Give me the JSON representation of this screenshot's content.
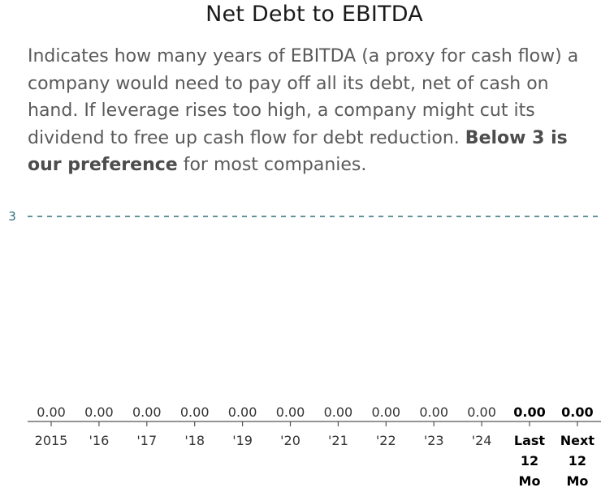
{
  "title": "Net Debt to EBITDA",
  "description": {
    "text": "Indicates how many years of EBITDA (a proxy for cash flow) a company would need to pay off all its debt, net of cash on hand. If leverage rises too high, a company might cut its dividend to free up cash flow for debt reduction. ",
    "bold": "Below 3 is our preference",
    "tail": " for most companies."
  },
  "colors": {
    "reference_line": "#2f6f7a",
    "axis": "#555555",
    "text": "#333333"
  },
  "chart_data": {
    "type": "bar",
    "title": "Net Debt to EBITDA",
    "categories": [
      "2015",
      "'16",
      "'17",
      "'18",
      "'19",
      "'20",
      "'21",
      "'22",
      "'23",
      "'24",
      "Last 12 Mo",
      "Next 12 Mo"
    ],
    "values": [
      0.0,
      0.0,
      0.0,
      0.0,
      0.0,
      0.0,
      0.0,
      0.0,
      0.0,
      0.0,
      0.0,
      0.0
    ],
    "value_labels": [
      "0.00",
      "0.00",
      "0.00",
      "0.00",
      "0.00",
      "0.00",
      "0.00",
      "0.00",
      "0.00",
      "0.00",
      "0.00",
      "0.00"
    ],
    "bold_categories": [
      "Last 12 Mo",
      "Next 12 Mo"
    ],
    "reference_line": {
      "value": 3,
      "label": "3",
      "style": "dashed"
    },
    "ylim": [
      0,
      3
    ],
    "grid": false,
    "legend": "none"
  }
}
